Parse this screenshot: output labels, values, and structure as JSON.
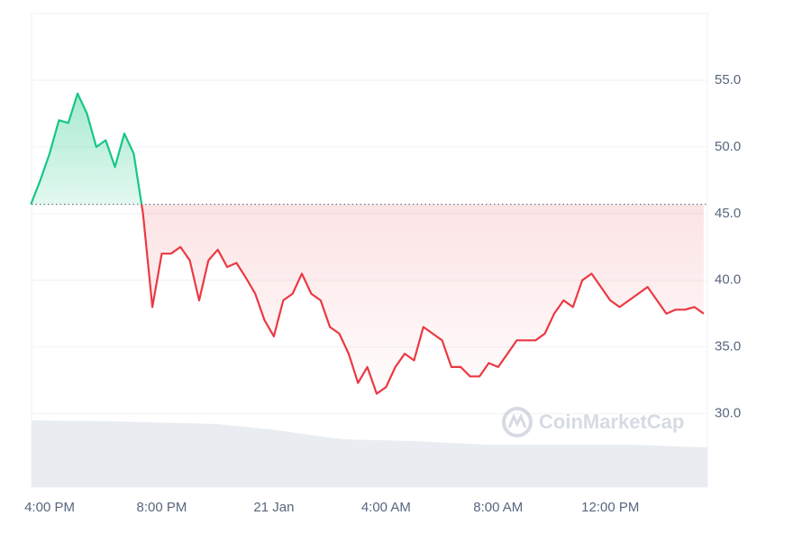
{
  "chart_data": {
    "type": "line",
    "categories": [
      null,
      null,
      "4:00 PM",
      null,
      null,
      null,
      null,
      null,
      null,
      null,
      null,
      null,
      null,
      null,
      "8:00 PM",
      null,
      null,
      null,
      null,
      null,
      null,
      null,
      null,
      null,
      null,
      null,
      "21 Jan",
      null,
      null,
      null,
      null,
      null,
      null,
      null,
      null,
      null,
      null,
      null,
      "4:00 AM",
      null,
      null,
      null,
      null,
      null,
      null,
      null,
      null,
      null,
      null,
      null,
      "8:00 AM",
      null,
      null,
      null,
      null,
      null,
      null,
      null,
      null,
      null,
      null,
      null,
      "12:00 PM",
      null,
      null,
      null,
      null,
      null,
      null,
      null,
      null,
      null,
      null
    ],
    "values": [
      45.7,
      47.5,
      49.5,
      52.0,
      51.8,
      54.0,
      52.5,
      50.0,
      50.5,
      48.5,
      51.0,
      49.5,
      45.0,
      38.0,
      42.0,
      42.0,
      42.5,
      41.5,
      38.5,
      41.5,
      42.3,
      41.0,
      41.3,
      40.2,
      39.0,
      37.0,
      35.8,
      38.5,
      39.0,
      40.5,
      39.0,
      38.5,
      36.5,
      36.0,
      34.5,
      32.3,
      33.5,
      31.5,
      32.0,
      33.5,
      34.5,
      34.0,
      36.5,
      36.0,
      35.5,
      33.5,
      33.5,
      32.8,
      32.8,
      33.8,
      33.5,
      34.5,
      35.5,
      35.5,
      35.5,
      36.0,
      37.5,
      38.5,
      38.0,
      40.0,
      40.5,
      39.5,
      38.5,
      38.0,
      38.5,
      39.0,
      39.5,
      38.5,
      37.5,
      37.8,
      37.8,
      38.0,
      37.5
    ],
    "baseline": 45.7,
    "up_color": "#16c784",
    "down_color": "#ea3943",
    "ylim": [
      24.5,
      60
    ],
    "yticks": [
      {
        "value": 30,
        "label": "30.0"
      },
      {
        "value": 35,
        "label": "35.0"
      },
      {
        "value": 40,
        "label": "40.0"
      },
      {
        "value": 45,
        "label": "45.0"
      },
      {
        "value": 50,
        "label": "50.0"
      },
      {
        "value": 55,
        "label": "55.0"
      }
    ],
    "grid": true,
    "watermark": "CoinMarketCap"
  }
}
